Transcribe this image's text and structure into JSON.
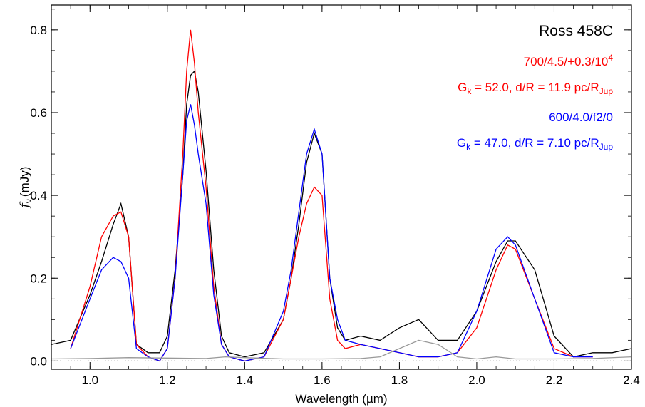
{
  "chart_data": {
    "type": "line",
    "title": "Ross 458C",
    "xlabel": "Wavelength (µm)",
    "ylabel_symbol": "f",
    "ylabel_subscript": "ν",
    "ylabel_unit": "(mJy)",
    "xlim": [
      0.9,
      2.4
    ],
    "ylim": [
      -0.02,
      0.86
    ],
    "x_ticks": [
      1.0,
      1.2,
      1.4,
      1.6,
      1.8,
      2.0,
      2.2,
      2.4
    ],
    "x_tick_labels": [
      "1.0",
      "1.2",
      "1.4",
      "1.6",
      "1.8",
      "2.0",
      "2.2",
      "2.4"
    ],
    "y_ticks": [
      0.0,
      0.2,
      0.4,
      0.6,
      0.8
    ],
    "y_tick_labels": [
      "0.0",
      "0.2",
      "0.4",
      "0.6",
      "0.8"
    ],
    "grid": false,
    "annotations": {
      "model1": {
        "params_base": "700/4.5/+0.3/10",
        "params_sup": "4",
        "fit_text": "G",
        "fit_sub": "k",
        "fit_rest": " = 52.0, d/R = 11.9 pc/R",
        "fit_unit_sub": "Jup",
        "color": "#ff0000"
      },
      "model2": {
        "params_base": "600/4.0/f2/0",
        "fit_text": "G",
        "fit_sub": "k",
        "fit_rest": " = 47.0, d/R = 7.10 pc/R",
        "fit_unit_sub": "Jup",
        "color": "#0000ff"
      }
    },
    "series": [
      {
        "color": "#000000",
        "x": [
          0.9,
          0.95,
          1.0,
          1.03,
          1.06,
          1.08,
          1.1,
          1.12,
          1.15,
          1.18,
          1.2,
          1.22,
          1.24,
          1.25,
          1.26,
          1.27,
          1.28,
          1.3,
          1.32,
          1.34,
          1.36,
          1.4,
          1.45,
          1.5,
          1.52,
          1.54,
          1.56,
          1.58,
          1.6,
          1.62,
          1.64,
          1.66,
          1.7,
          1.75,
          1.8,
          1.85,
          1.9,
          1.95,
          2.0,
          2.05,
          2.08,
          2.1,
          2.15,
          2.2,
          2.25,
          2.3,
          2.35,
          2.4
        ],
        "y": [
          0.04,
          0.05,
          0.16,
          0.24,
          0.33,
          0.38,
          0.3,
          0.04,
          0.02,
          0.02,
          0.06,
          0.22,
          0.45,
          0.62,
          0.69,
          0.7,
          0.65,
          0.46,
          0.22,
          0.06,
          0.02,
          0.01,
          0.02,
          0.1,
          0.2,
          0.33,
          0.48,
          0.55,
          0.5,
          0.2,
          0.08,
          0.05,
          0.06,
          0.05,
          0.08,
          0.1,
          0.05,
          0.05,
          0.12,
          0.24,
          0.29,
          0.29,
          0.22,
          0.06,
          0.01,
          0.02,
          0.02,
          0.03
        ]
      },
      {
        "color": "#ff0000",
        "x": [
          0.95,
          1.0,
          1.03,
          1.06,
          1.08,
          1.1,
          1.12,
          1.15,
          1.18,
          1.2,
          1.22,
          1.24,
          1.25,
          1.26,
          1.27,
          1.28,
          1.3,
          1.32,
          1.34,
          1.36,
          1.4,
          1.45,
          1.5,
          1.52,
          1.54,
          1.56,
          1.58,
          1.6,
          1.62,
          1.64,
          1.66,
          1.7,
          1.75,
          1.8,
          1.85,
          1.9,
          1.95,
          2.0,
          2.05,
          2.08,
          2.1,
          2.15,
          2.2,
          2.25,
          2.3
        ],
        "y": [
          0.03,
          0.18,
          0.3,
          0.35,
          0.36,
          0.3,
          0.04,
          0.01,
          0.0,
          0.03,
          0.2,
          0.5,
          0.7,
          0.8,
          0.72,
          0.6,
          0.42,
          0.18,
          0.04,
          0.01,
          0.0,
          0.01,
          0.1,
          0.2,
          0.3,
          0.38,
          0.42,
          0.4,
          0.15,
          0.05,
          0.03,
          0.04,
          0.03,
          0.02,
          0.01,
          0.01,
          0.02,
          0.08,
          0.22,
          0.28,
          0.27,
          0.15,
          0.03,
          0.01,
          0.01
        ]
      },
      {
        "color": "#0000ff",
        "x": [
          0.95,
          1.0,
          1.03,
          1.06,
          1.08,
          1.1,
          1.12,
          1.15,
          1.18,
          1.2,
          1.22,
          1.24,
          1.25,
          1.26,
          1.27,
          1.28,
          1.3,
          1.32,
          1.34,
          1.36,
          1.4,
          1.45,
          1.5,
          1.52,
          1.54,
          1.56,
          1.58,
          1.6,
          1.62,
          1.64,
          1.66,
          1.7,
          1.75,
          1.8,
          1.85,
          1.9,
          1.95,
          2.0,
          2.05,
          2.08,
          2.1,
          2.15,
          2.2,
          2.25,
          2.3
        ],
        "y": [
          0.03,
          0.15,
          0.22,
          0.25,
          0.24,
          0.2,
          0.03,
          0.01,
          0.0,
          0.03,
          0.2,
          0.45,
          0.58,
          0.62,
          0.57,
          0.5,
          0.38,
          0.16,
          0.04,
          0.01,
          0.0,
          0.01,
          0.12,
          0.22,
          0.36,
          0.5,
          0.56,
          0.5,
          0.2,
          0.1,
          0.05,
          0.04,
          0.03,
          0.02,
          0.01,
          0.01,
          0.02,
          0.12,
          0.27,
          0.3,
          0.28,
          0.15,
          0.02,
          0.01,
          0.01
        ]
      },
      {
        "color": "#999999",
        "x": [
          0.9,
          1.0,
          1.1,
          1.2,
          1.3,
          1.35,
          1.4,
          1.5,
          1.6,
          1.7,
          1.75,
          1.8,
          1.85,
          1.9,
          1.95,
          2.0,
          2.05,
          2.1,
          2.2,
          2.3,
          2.4
        ],
        "y": [
          0.005,
          0.006,
          0.008,
          0.007,
          0.006,
          0.01,
          0.008,
          0.005,
          0.005,
          0.006,
          0.01,
          0.03,
          0.05,
          0.04,
          0.01,
          0.005,
          0.01,
          0.005,
          0.005,
          0.006,
          0.01
        ]
      }
    ],
    "reference_line": {
      "y": 0.0,
      "style": "dotted"
    }
  }
}
